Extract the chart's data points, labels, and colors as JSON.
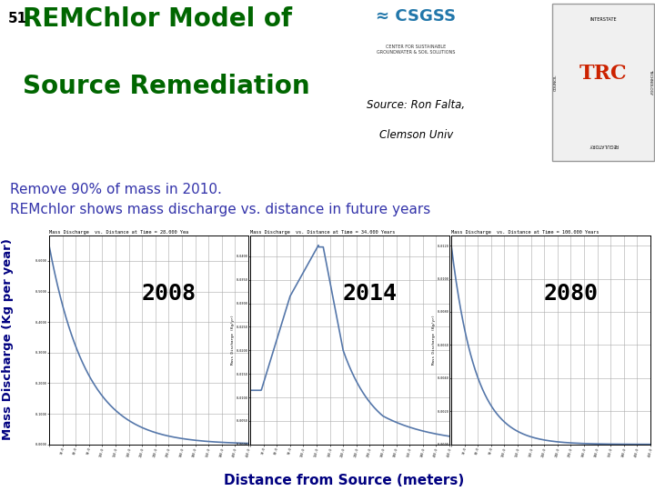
{
  "title_number": "51",
  "title_main_line1": "REMChlor Model of",
  "title_main_line2": "Source Remediation",
  "title_source_line1": "Source: Ron Falta,",
  "title_source_line2": "Clemson Univ",
  "subtitle_line1": "Remove 90% of mass in 2010.",
  "subtitle_line2": "REMchlor shows mass discharge vs. distance in future years",
  "subtitle_color": "#3333aa",
  "title_color": "#006600",
  "bg_color": "#ffffff",
  "header_stripe_color": "#cccccc",
  "plot_bg": "#e8e8e8",
  "plot_area_bg": "#ffffff",
  "grid_color": "#aaaaaa",
  "line_color": "#5577aa",
  "years": [
    "2008",
    "2014",
    "2080"
  ],
  "plot_titles": [
    "Mass Discharge  vs. Distance at Time = 28.000 Yea",
    "Mass Discharge  vs. Distance at Time = 34.000 Years",
    "Mass Discharge  vs. Distance at Time = 100.000 Years"
  ],
  "xlabel": "Distance from Source (meters)",
  "ylabel": "Mass Discharge (Kg per year)",
  "xlabel_color": "#000080",
  "ylabel_color": "#000080",
  "header_line1_color": "#000066",
  "header_line2_color": "#006600"
}
